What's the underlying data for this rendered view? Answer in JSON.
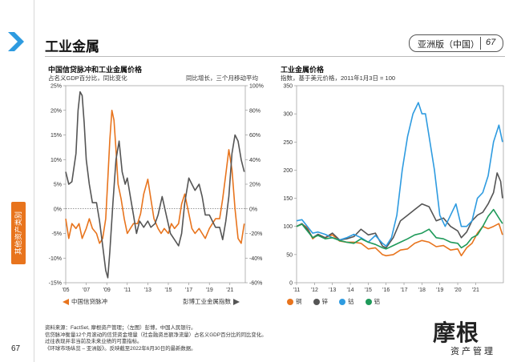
{
  "header": {
    "title": "工业金属",
    "region": "亚洲版（中国）",
    "page_number": "67"
  },
  "sidebar": {
    "tab_label": "其他资产类别",
    "page_number": "67"
  },
  "colors": {
    "orange": "#e8741d",
    "gray": "#555555",
    "blue": "#2e9be0",
    "green": "#1f9a5a",
    "copper": "#e8741d"
  },
  "left_chart": {
    "title": "中国信贷脉冲和工业金属价格",
    "subtitle": "占名义GDP百分比，同比变化",
    "right_note": "同比增长，三个月移动平均",
    "legend": {
      "series1": "中国信贷脉冲",
      "series2": "彭博工业金属指数"
    }
  },
  "right_chart": {
    "title": "工业金属价格",
    "subtitle": "指数，基于美元价格，2011年1月3日 = 100",
    "legend": [
      "铜",
      "锌",
      "钴",
      "铝"
    ]
  },
  "chart_data": [
    {
      "type": "line",
      "title": "中国信贷脉冲和工业金属价格",
      "x_range": [
        2005,
        2022.5
      ],
      "x_tick_labels": [
        "'05",
        "'07",
        "'09",
        "'11",
        "'13",
        "'15",
        "'17",
        "'19",
        "'21"
      ],
      "x_ticks": [
        2005,
        2007,
        2009,
        2011,
        2013,
        2015,
        2017,
        2019,
        2021
      ],
      "y_left_range": [
        -15,
        25
      ],
      "y_left_ticks": [
        -15,
        -10,
        -5,
        0,
        5,
        10,
        15,
        20,
        25
      ],
      "y_left_labels": [
        "-15%",
        "-10%",
        "-5%",
        "0%",
        "5%",
        "10%",
        "15%",
        "20%",
        "25%"
      ],
      "y_right_range": [
        -60,
        100
      ],
      "y_right_ticks": [
        -60,
        -40,
        -20,
        0,
        20,
        40,
        60,
        80,
        100
      ],
      "y_right_labels": [
        "-60%",
        "-40%",
        "-20%",
        "0%",
        "20%",
        "40%",
        "60%",
        "80%",
        "100%"
      ],
      "series": [
        {
          "name": "中国信贷脉冲",
          "axis": "left",
          "color": "#e8741d",
          "x": [
            2005.0,
            2005.3,
            2005.6,
            2006.0,
            2006.3,
            2006.6,
            2007.0,
            2007.3,
            2007.6,
            2008.0,
            2008.3,
            2008.6,
            2008.9,
            2009.1,
            2009.3,
            2009.5,
            2009.7,
            2009.9,
            2010.1,
            2010.4,
            2010.7,
            2011.0,
            2011.3,
            2011.6,
            2012.0,
            2012.3,
            2012.6,
            2013.0,
            2013.3,
            2013.6,
            2014.0,
            2014.3,
            2014.6,
            2015.0,
            2015.3,
            2015.6,
            2016.0,
            2016.3,
            2016.6,
            2017.0,
            2017.3,
            2017.6,
            2018.0,
            2018.3,
            2018.6,
            2019.0,
            2019.3,
            2019.6,
            2020.0,
            2020.3,
            2020.6,
            2020.9,
            2021.2,
            2021.5,
            2021.8,
            2022.1,
            2022.4
          ],
          "y": [
            -2,
            -6,
            -3,
            -4,
            -3,
            -6,
            -4,
            -2,
            -4,
            -5,
            -7,
            -6,
            -2,
            6,
            14,
            20,
            18,
            12,
            5,
            2,
            -2,
            -5,
            -4,
            -3,
            -3,
            -1,
            3,
            6,
            2,
            -2,
            -4,
            -5,
            -4,
            -5,
            -3,
            -4,
            -3,
            1,
            3,
            -1,
            -4,
            -5,
            -4,
            -5,
            -6,
            -4,
            -3,
            -2,
            -2,
            2,
            7,
            12,
            8,
            0,
            -6,
            -7,
            -3
          ]
        },
        {
          "name": "彭博工业金属指数",
          "axis": "right",
          "color": "#555555",
          "x": [
            2005.0,
            2005.3,
            2005.6,
            2006.0,
            2006.2,
            2006.4,
            2006.6,
            2006.8,
            2007.0,
            2007.3,
            2007.6,
            2008.0,
            2008.3,
            2008.6,
            2008.9,
            2009.1,
            2009.3,
            2009.6,
            2009.9,
            2010.2,
            2010.5,
            2010.8,
            2011.0,
            2011.3,
            2011.6,
            2011.9,
            2012.2,
            2012.6,
            2013.0,
            2013.3,
            2013.7,
            2014.0,
            2014.4,
            2014.8,
            2015.2,
            2015.6,
            2016.0,
            2016.3,
            2016.6,
            2017.0,
            2017.3,
            2017.6,
            2018.0,
            2018.3,
            2018.6,
            2019.0,
            2019.3,
            2019.6,
            2020.0,
            2020.3,
            2020.6,
            2020.9,
            2021.2,
            2021.5,
            2021.8,
            2022.1,
            2022.4
          ],
          "y": [
            30,
            20,
            22,
            45,
            80,
            95,
            92,
            70,
            40,
            20,
            5,
            5,
            -10,
            -30,
            -50,
            -56,
            -35,
            5,
            40,
            55,
            30,
            20,
            25,
            10,
            -5,
            -20,
            -10,
            -15,
            -10,
            -15,
            -12,
            -5,
            10,
            -5,
            -20,
            -25,
            -30,
            -20,
            5,
            25,
            20,
            15,
            20,
            10,
            -5,
            -5,
            -10,
            -15,
            -15,
            -25,
            -10,
            10,
            45,
            60,
            55,
            40,
            30
          ]
        }
      ]
    },
    {
      "type": "line",
      "title": "工业金属价格",
      "x_range": [
        2011,
        2022.55
      ],
      "x_tick_labels": [
        "'11",
        "'12",
        "'13",
        "'14",
        "'15",
        "'16",
        "'17",
        "'18",
        "'19",
        "'20",
        "'21"
      ],
      "x_ticks": [
        2011,
        2012,
        2013,
        2014,
        2015,
        2016,
        2017,
        2018,
        2019,
        2020,
        2021
      ],
      "y_range": [
        0,
        350
      ],
      "y_ticks": [
        0,
        50,
        100,
        150,
        200,
        250,
        300,
        350
      ],
      "series": [
        {
          "name": "铜",
          "color": "#e8741d",
          "x": [
            2011.0,
            2011.3,
            2011.6,
            2011.9,
            2012.2,
            2012.6,
            2013.0,
            2013.4,
            2013.8,
            2014.2,
            2014.6,
            2015.0,
            2015.4,
            2015.8,
            2016.0,
            2016.4,
            2016.8,
            2017.2,
            2017.6,
            2018.0,
            2018.4,
            2018.8,
            2019.2,
            2019.6,
            2020.0,
            2020.2,
            2020.5,
            2020.8,
            2021.1,
            2021.4,
            2021.7,
            2022.0,
            2022.3,
            2022.5
          ],
          "y": [
            100,
            104,
            98,
            78,
            86,
            80,
            85,
            74,
            72,
            72,
            70,
            60,
            62,
            50,
            48,
            50,
            58,
            60,
            70,
            75,
            72,
            64,
            66,
            58,
            60,
            48,
            62,
            70,
            88,
            100,
            96,
            100,
            105,
            85
          ]
        },
        {
          "name": "锌",
          "color": "#555555",
          "x": [
            2011.0,
            2011.3,
            2011.6,
            2011.9,
            2012.2,
            2012.6,
            2013.0,
            2013.4,
            2013.8,
            2014.2,
            2014.6,
            2015.0,
            2015.4,
            2015.8,
            2016.0,
            2016.4,
            2016.8,
            2017.2,
            2017.6,
            2018.0,
            2018.4,
            2018.8,
            2019.2,
            2019.6,
            2020.0,
            2020.2,
            2020.5,
            2020.8,
            2021.1,
            2021.4,
            2021.7,
            2022.0,
            2022.2,
            2022.4,
            2022.5
          ],
          "y": [
            100,
            105,
            95,
            80,
            86,
            80,
            88,
            76,
            78,
            82,
            95,
            85,
            88,
            65,
            62,
            80,
            110,
            120,
            130,
            140,
            135,
            110,
            115,
            100,
            92,
            80,
            90,
            110,
            120,
            125,
            140,
            160,
            195,
            180,
            150
          ]
        },
        {
          "name": "钴",
          "color": "#2e9be0",
          "x": [
            2011.0,
            2011.3,
            2011.6,
            2011.9,
            2012.2,
            2012.6,
            2013.0,
            2013.4,
            2013.8,
            2014.2,
            2014.6,
            2015.0,
            2015.4,
            2015.8,
            2016.0,
            2016.3,
            2016.6,
            2016.9,
            2017.2,
            2017.5,
            2017.8,
            2018.0,
            2018.2,
            2018.4,
            2018.7,
            2019.0,
            2019.3,
            2019.6,
            2019.9,
            2020.2,
            2020.5,
            2020.8,
            2021.1,
            2021.4,
            2021.7,
            2022.0,
            2022.3,
            2022.5
          ],
          "y": [
            110,
            112,
            100,
            88,
            90,
            86,
            80,
            76,
            80,
            86,
            80,
            72,
            84,
            70,
            65,
            80,
            120,
            200,
            260,
            300,
            320,
            300,
            300,
            260,
            200,
            120,
            100,
            120,
            140,
            100,
            100,
            110,
            150,
            160,
            190,
            250,
            280,
            250
          ]
        },
        {
          "name": "铝",
          "color": "#1f9a5a",
          "x": [
            2011.0,
            2011.3,
            2011.6,
            2011.9,
            2012.2,
            2012.6,
            2013.0,
            2013.4,
            2013.8,
            2014.2,
            2014.6,
            2015.0,
            2015.4,
            2015.8,
            2016.0,
            2016.4,
            2016.8,
            2017.2,
            2017.6,
            2018.0,
            2018.4,
            2018.8,
            2019.2,
            2019.6,
            2020.0,
            2020.2,
            2020.5,
            2020.8,
            2021.1,
            2021.4,
            2021.7,
            2022.0,
            2022.3,
            2022.5
          ],
          "y": [
            100,
            104,
            92,
            80,
            84,
            78,
            80,
            75,
            72,
            70,
            78,
            72,
            68,
            62,
            60,
            66,
            72,
            78,
            85,
            88,
            95,
            80,
            78,
            72,
            70,
            62,
            68,
            80,
            85,
            100,
            118,
            130,
            115,
            105
          ]
        }
      ]
    }
  ],
  "footer": {
    "line1": "资料来源：FactSet, 摩根资产管理；（左图）彭博，中国人民银行。",
    "line2": "信贷脉冲衡量12个月滚动的信贷资金增量（社会融资总额净流量）占名义GDP百分比的同比变化。",
    "line3": "过往表现并非当前及未来业绩的可靠指标。",
    "line4": "《环球市场纵览 – 亚洲版》。反映截至2022年6月30日的最新数据。"
  },
  "brand": {
    "logo": "摩根",
    "sub": "资产管理"
  }
}
